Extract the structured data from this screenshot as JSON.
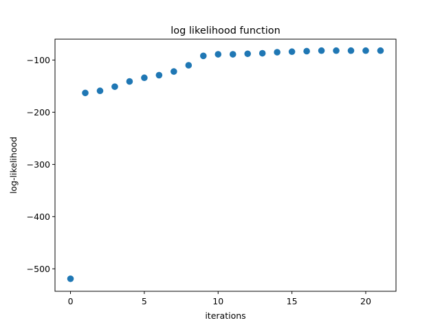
{
  "chart_data": {
    "type": "scatter",
    "title": "log likelihood function",
    "xlabel": "iterations",
    "ylabel": "log-likelihood",
    "xlim": [
      -1.05,
      22.05
    ],
    "ylim": [
      -543,
      -60
    ],
    "xticks": [
      0,
      5,
      10,
      15,
      20
    ],
    "xtick_labels": [
      "0",
      "5",
      "10",
      "15",
      "20"
    ],
    "yticks": [
      -500,
      -400,
      -300,
      -200,
      -100
    ],
    "ytick_labels": [
      "−500",
      "−400",
      "−300",
      "−200",
      "−100"
    ],
    "grid": false,
    "color": "#1f77b4",
    "x": [
      0,
      1,
      2,
      3,
      4,
      5,
      6,
      7,
      8,
      9,
      10,
      11,
      12,
      13,
      14,
      15,
      16,
      17,
      18,
      19,
      20,
      21
    ],
    "y": [
      -519,
      -163,
      -159,
      -151,
      -141,
      -134,
      -129,
      -122,
      -110,
      -92,
      -89,
      -89,
      -88,
      -87,
      -85,
      -84,
      -83,
      -82,
      -82,
      -82,
      -82,
      -82
    ]
  }
}
